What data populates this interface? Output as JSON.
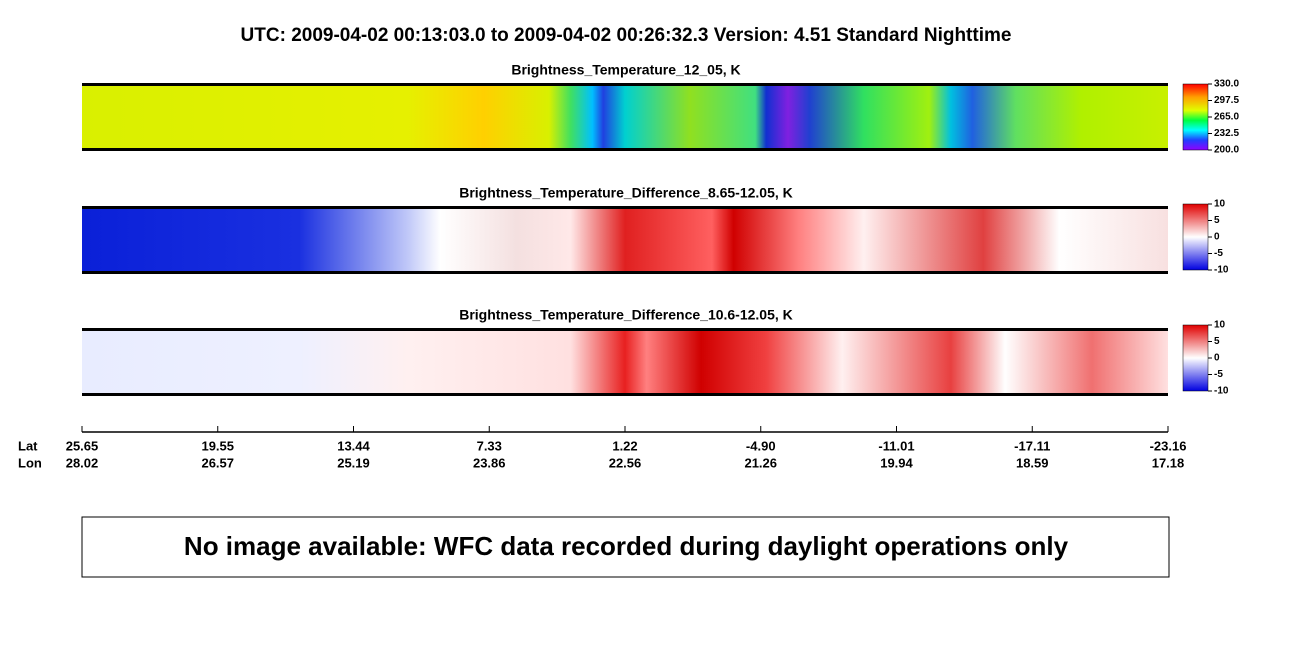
{
  "header": {
    "title": "UTC:  2009-04-02   00:13:03.0  to  2009-04-02   00:26:32.3    Version: 4.51  Standard Nighttime"
  },
  "panels": [
    {
      "title": "Brightness_Temperature_12_05, K",
      "colorbar_labels": [
        "330.0",
        "297.5",
        "265.0",
        "232.5",
        "200.0"
      ]
    },
    {
      "title": "Brightness_Temperature_Difference_8.65-12.05, K",
      "colorbar_labels": [
        "10",
        "5",
        "0",
        "-5",
        "-10"
      ]
    },
    {
      "title": "Brightness_Temperature_Difference_10.6-12.05, K",
      "colorbar_labels": [
        "10",
        "5",
        "0",
        "-5",
        "-10"
      ]
    }
  ],
  "axis": {
    "lat_label": "Lat",
    "lon_label": "Lon",
    "lat": [
      "25.65",
      "19.55",
      "13.44",
      "7.33",
      "1.22",
      "-4.90",
      "-11.01",
      "-17.11",
      "-23.16"
    ],
    "lon": [
      "28.02",
      "26.57",
      "25.19",
      "23.86",
      "22.56",
      "21.26",
      "19.94",
      "18.59",
      "17.18"
    ]
  },
  "message": "No image available: WFC data recorded during daylight operations only"
}
